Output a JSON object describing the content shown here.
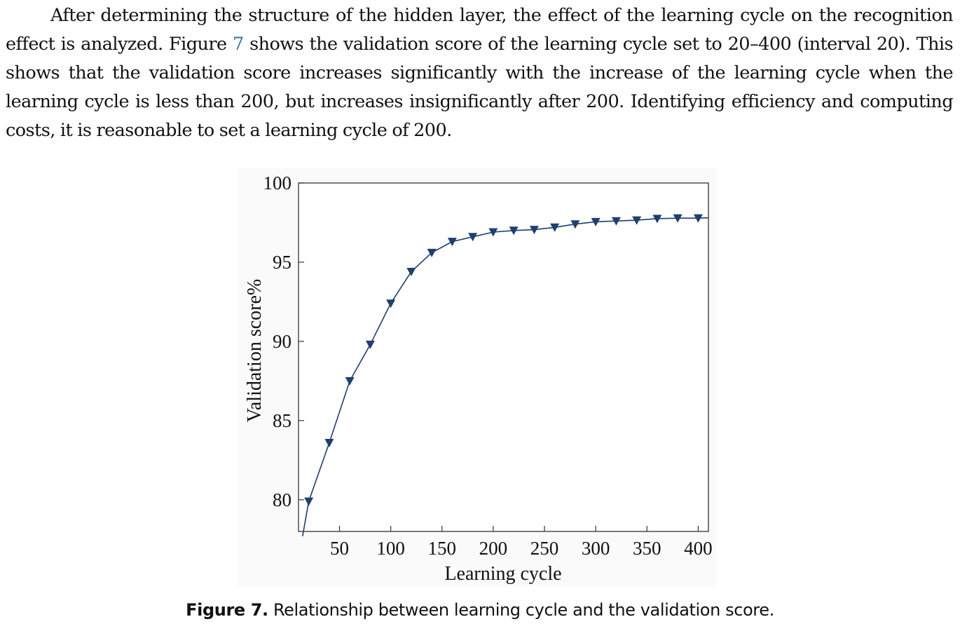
{
  "paragraph": {
    "text_before_ref": "After determining the structure of the hidden layer, the effect of the learning cycle on the recognition effect is analyzed. Figure ",
    "ref": "7",
    "text_after_ref": " shows the validation score of the learning cycle set to 20–400 (interval 20). This shows that the validation score increases significantly with the increase of the learning cycle when the learning cycle is less than 200, but increases insignificantly after 200. Identifying efficiency and computing costs, it is reasonable to set a learning cycle of 200."
  },
  "caption": {
    "label": "Figure 7.",
    "text": " Relationship between learning cycle and the validation score."
  },
  "colors": {
    "series": "#1f3f6e",
    "link": "#3a6ea5"
  },
  "chart_data": {
    "type": "line",
    "xlabel": "Learning cycle",
    "ylabel": "Validation score%",
    "xlim": [
      10,
      410
    ],
    "ylim": [
      78,
      100
    ],
    "xticks": [
      50,
      100,
      150,
      200,
      250,
      300,
      350,
      400
    ],
    "yticks": [
      80,
      85,
      90,
      95,
      100
    ],
    "marker": "triangle-down",
    "grid": false,
    "series": [
      {
        "x": [
          20,
          40,
          60,
          80,
          100,
          120,
          140,
          160,
          180,
          200,
          220,
          240,
          260,
          280,
          300,
          320,
          340,
          360,
          380,
          400
        ],
        "values": [
          79.9,
          83.6,
          87.5,
          89.8,
          92.4,
          94.4,
          95.6,
          96.3,
          96.6,
          96.9,
          97.0,
          97.05,
          97.2,
          97.4,
          97.55,
          97.6,
          97.65,
          97.75,
          97.78,
          97.78
        ]
      }
    ],
    "line_start": {
      "x": 14,
      "y": 77.7
    },
    "line_end": {
      "x": 410,
      "y": 97.8
    }
  }
}
